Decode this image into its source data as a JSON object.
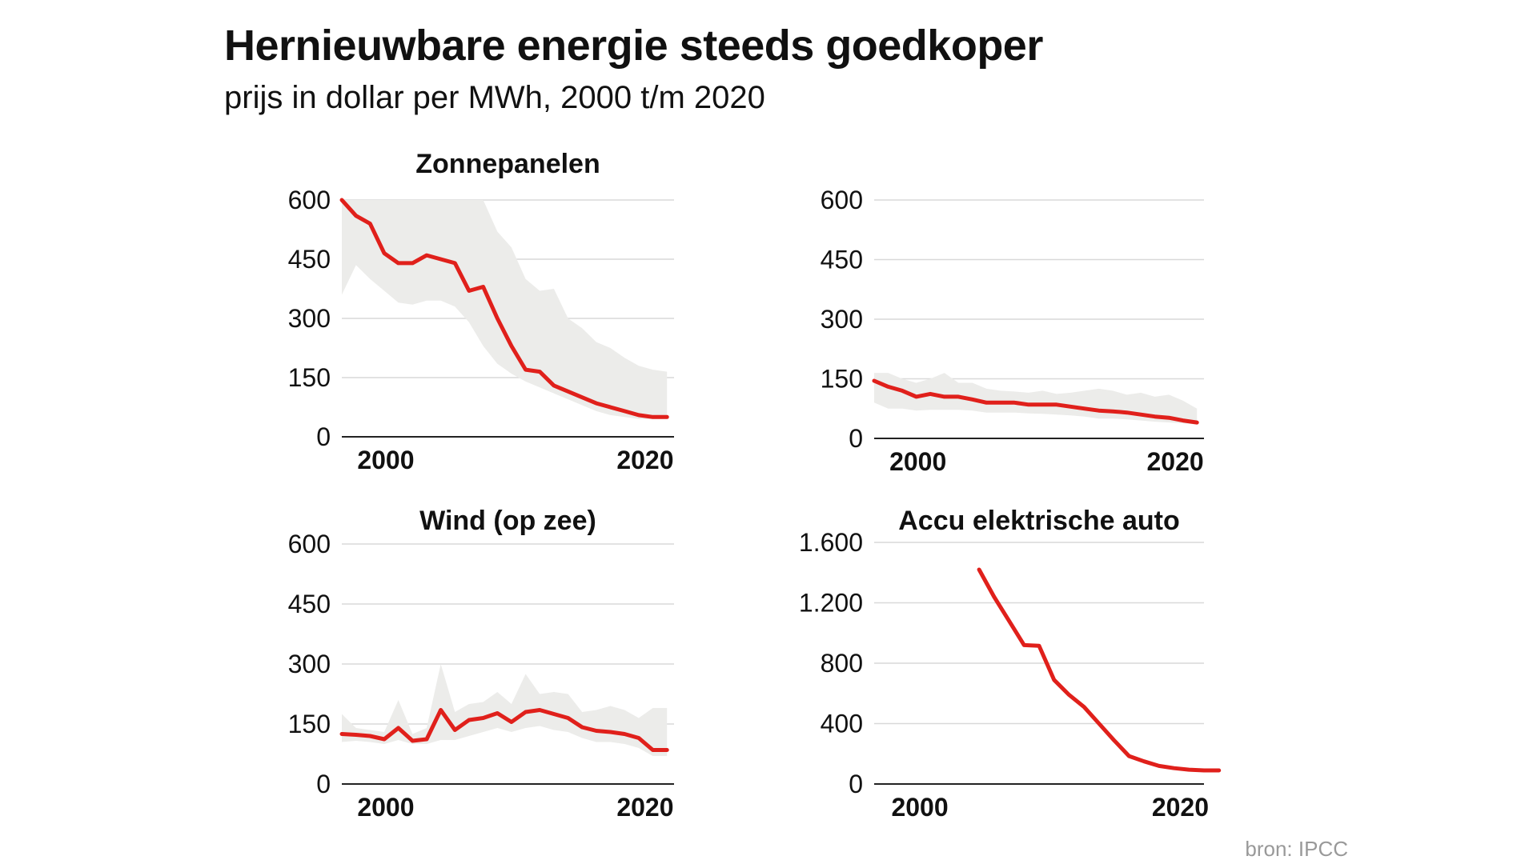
{
  "header": {
    "title": "Hernieuwbare energie steeds goedkoper",
    "subtitle": "prijs in dollar per MWh, 2000 t/m 2020"
  },
  "source": "bron: IPCC",
  "colors": {
    "line": "#e0201b",
    "band": "#ececea",
    "grid": "#d9d9d9",
    "axis": "#222222"
  },
  "chart_data": [
    {
      "type": "line",
      "title": "Zonnepanelen",
      "years": [
        1998,
        1999,
        2000,
        2001,
        2002,
        2003,
        2004,
        2005,
        2006,
        2007,
        2008,
        2009,
        2010,
        2011,
        2012,
        2013,
        2014,
        2015,
        2016,
        2017,
        2018,
        2019,
        2020,
        2021
      ],
      "values": [
        600,
        560,
        540,
        465,
        440,
        440,
        460,
        450,
        440,
        370,
        380,
        300,
        230,
        170,
        165,
        130,
        115,
        100,
        85,
        75,
        65,
        55,
        50,
        50
      ],
      "band_low": [
        360,
        435,
        400,
        370,
        340,
        335,
        345,
        345,
        330,
        290,
        230,
        185,
        160,
        140,
        125,
        110,
        95,
        80,
        65,
        55,
        50,
        45,
        45,
        45
      ],
      "band_high": [
        600,
        600,
        600,
        600,
        600,
        600,
        600,
        600,
        600,
        600,
        600,
        520,
        480,
        400,
        370,
        375,
        300,
        275,
        240,
        225,
        200,
        180,
        170,
        165
      ],
      "ylim": [
        0,
        600
      ],
      "yticks": [
        0,
        150,
        300,
        450,
        600
      ],
      "ytick_labels": [
        "0",
        "150",
        "300",
        "450",
        "600"
      ],
      "xticks": [
        2000,
        2020
      ],
      "xtick_labels": [
        "2000",
        "2020"
      ],
      "xlim": [
        1998,
        2021.5
      ]
    },
    {
      "type": "line",
      "title": "",
      "years": [
        1998,
        1999,
        2000,
        2001,
        2002,
        2003,
        2004,
        2005,
        2006,
        2007,
        2008,
        2009,
        2010,
        2011,
        2012,
        2013,
        2014,
        2015,
        2016,
        2017,
        2018,
        2019,
        2020,
        2021
      ],
      "values": [
        145,
        130,
        120,
        105,
        112,
        105,
        105,
        98,
        90,
        90,
        90,
        85,
        85,
        85,
        80,
        75,
        70,
        68,
        65,
        60,
        55,
        52,
        45,
        40
      ],
      "band_low": [
        90,
        75,
        75,
        70,
        72,
        72,
        72,
        70,
        65,
        65,
        65,
        63,
        62,
        60,
        58,
        55,
        50,
        50,
        48,
        45,
        42,
        40,
        38,
        35
      ],
      "band_high": [
        165,
        165,
        150,
        140,
        150,
        165,
        140,
        140,
        125,
        120,
        118,
        115,
        120,
        112,
        115,
        120,
        125,
        120,
        110,
        115,
        105,
        110,
        95,
        75
      ],
      "ylim": [
        0,
        600
      ],
      "yticks": [
        0,
        150,
        300,
        450,
        600
      ],
      "ytick_labels": [
        "0",
        "150",
        "300",
        "450",
        "600"
      ],
      "xticks": [
        2000,
        2020
      ],
      "xtick_labels": [
        "2000",
        "2020"
      ],
      "xlim": [
        1998,
        2021.5
      ]
    },
    {
      "type": "line",
      "title": "Wind (op zee)",
      "years": [
        1998,
        1999,
        2000,
        2001,
        2002,
        2003,
        2004,
        2005,
        2006,
        2007,
        2008,
        2009,
        2010,
        2011,
        2012,
        2013,
        2014,
        2015,
        2016,
        2017,
        2018,
        2019,
        2020,
        2021
      ],
      "values": [
        125,
        123,
        120,
        112,
        140,
        108,
        112,
        185,
        135,
        160,
        165,
        177,
        155,
        180,
        185,
        175,
        165,
        142,
        133,
        130,
        125,
        115,
        85,
        85
      ],
      "band_low": [
        105,
        108,
        105,
        100,
        110,
        100,
        100,
        110,
        110,
        120,
        130,
        140,
        130,
        140,
        145,
        135,
        130,
        115,
        105,
        105,
        100,
        90,
        70,
        70
      ],
      "band_high": [
        175,
        140,
        135,
        130,
        210,
        125,
        140,
        300,
        180,
        200,
        205,
        230,
        200,
        275,
        225,
        230,
        225,
        180,
        185,
        195,
        185,
        165,
        190,
        190
      ],
      "ylim": [
        0,
        600
      ],
      "yticks": [
        0,
        150,
        300,
        450,
        600
      ],
      "ytick_labels": [
        "0",
        "150",
        "300",
        "450",
        "600"
      ],
      "xticks": [
        2000,
        2020
      ],
      "xtick_labels": [
        "2000",
        "2020"
      ],
      "xlim": [
        1998,
        2021.5
      ]
    },
    {
      "type": "line",
      "title": "Accu elektrische auto",
      "years": [
        2005,
        2006,
        2007,
        2008,
        2009,
        2010,
        2011,
        2012,
        2013,
        2014,
        2015,
        2016,
        2017,
        2018,
        2019,
        2020,
        2021
      ],
      "values": [
        1420,
        1240,
        1080,
        920,
        915,
        690,
        590,
        510,
        400,
        290,
        185,
        150,
        120,
        105,
        95,
        90,
        90
      ],
      "ylim": [
        0,
        1600
      ],
      "yticks": [
        0,
        400,
        800,
        1200,
        1600
      ],
      "ytick_labels": [
        "0",
        "400",
        "800",
        "1.200",
        "1.600"
      ],
      "xticks": [
        2000,
        2020
      ],
      "xtick_labels": [
        "2000",
        "2020"
      ],
      "xlim": [
        1998,
        2020
      ]
    }
  ]
}
